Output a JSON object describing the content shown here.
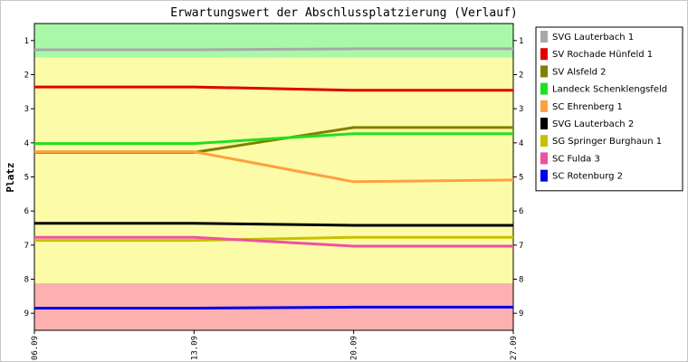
{
  "chart_data": {
    "type": "line",
    "title": "Erwartungswert der Abschlussplatzierung (Verlauf)",
    "ylabel": "Platz",
    "xlabel": "",
    "x_dates": [
      "06.09",
      "13.09",
      "20.09",
      "27.09"
    ],
    "x_day_numbers": [
      6,
      13,
      20,
      27
    ],
    "ylim": [
      0.5,
      9.5
    ],
    "y_inverted": true,
    "y_ticks": [
      1,
      2,
      3,
      4,
      5,
      6,
      7,
      8,
      9
    ],
    "grid": false,
    "legend_position": "right",
    "zones": [
      {
        "from": 0.5,
        "to": 1.5,
        "color": "#a8f8a8"
      },
      {
        "from": 1.5,
        "to": 8.12,
        "color": "#fcfca8"
      },
      {
        "from": 8.12,
        "to": 9.5,
        "color": "#fcb0b0"
      }
    ],
    "series": [
      {
        "name": "SVG Lauterbach 1",
        "color": "#a8a8a8",
        "points": [
          [
            6,
            1.27
          ],
          [
            13,
            1.27
          ],
          [
            20,
            1.24
          ],
          [
            27,
            1.24
          ]
        ]
      },
      {
        "name": "SV Rochade Hünfeld 1",
        "color": "#e00000",
        "points": [
          [
            6,
            2.36
          ],
          [
            13,
            2.36
          ],
          [
            20,
            2.46
          ],
          [
            27,
            2.46
          ]
        ]
      },
      {
        "name": "SV Alsfeld 2",
        "color": "#808000",
        "points": [
          [
            6,
            4.28
          ],
          [
            13,
            4.28
          ],
          [
            20,
            3.55
          ],
          [
            27,
            3.55
          ]
        ]
      },
      {
        "name": "Landeck Schenklengsfeld",
        "color": "#20e020",
        "points": [
          [
            6,
            4.02
          ],
          [
            13,
            4.02
          ],
          [
            20,
            3.73
          ],
          [
            27,
            3.73
          ]
        ]
      },
      {
        "name": "SC Ehrenberg 1",
        "color": "#ffa040",
        "points": [
          [
            6,
            4.26
          ],
          [
            13,
            4.26
          ],
          [
            20,
            5.14
          ],
          [
            27,
            5.09
          ]
        ]
      },
      {
        "name": "SVG Lauterbach 2",
        "color": "#000000",
        "points": [
          [
            6,
            6.36
          ],
          [
            13,
            6.36
          ],
          [
            20,
            6.42
          ],
          [
            27,
            6.42
          ]
        ]
      },
      {
        "name": "SG Springer Burghaun 1",
        "color": "#c8c000",
        "points": [
          [
            6,
            6.86
          ],
          [
            13,
            6.86
          ],
          [
            20,
            6.77
          ],
          [
            27,
            6.77
          ]
        ]
      },
      {
        "name": "SC Fulda 3",
        "color": "#f050a0",
        "points": [
          [
            6,
            6.77
          ],
          [
            13,
            6.77
          ],
          [
            20,
            7.03
          ],
          [
            27,
            7.03
          ]
        ]
      },
      {
        "name": "SC Rotenburg 2",
        "color": "#0000f0",
        "points": [
          [
            6,
            8.85
          ],
          [
            13,
            8.85
          ],
          [
            20,
            8.82
          ],
          [
            27,
            8.82
          ]
        ]
      }
    ]
  }
}
